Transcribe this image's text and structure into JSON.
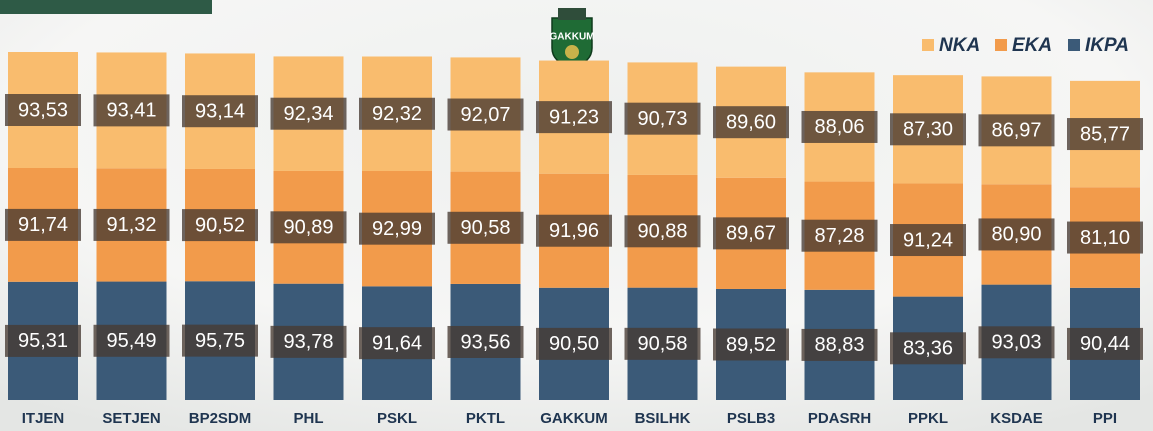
{
  "logo": "GAKKUM",
  "chart_data": {
    "type": "stacked_bar",
    "categories": [
      "ITJEN",
      "SETJEN",
      "BP2SDM",
      "PHL",
      "PSKL",
      "PKTL",
      "GAKKUM",
      "BSILHK",
      "PSLB3",
      "PDASRH",
      "PPKL",
      "KSDAE",
      "PPI"
    ],
    "legend": "top-right",
    "series": [
      {
        "name": "IKPA",
        "color": "#3b5a78",
        "values": [
          95.31,
          95.49,
          95.75,
          93.78,
          91.64,
          93.56,
          90.5,
          90.58,
          89.52,
          88.83,
          83.36,
          93.03,
          90.44
        ],
        "value_labels": [
          "95,31",
          "95,49",
          "95,75",
          "93,78",
          "91,64",
          "93,56",
          "90,50",
          "90,58",
          "89,52",
          "88,83",
          "83,36",
          "93,03",
          "90,44"
        ]
      },
      {
        "name": "EKA",
        "color": "#f29b4b",
        "values": [
          91.74,
          91.32,
          90.52,
          90.89,
          92.99,
          90.58,
          91.96,
          90.88,
          89.67,
          87.28,
          91.24,
          80.9,
          81.1
        ],
        "value_labels": [
          "91,74",
          "91,32",
          "90,52",
          "90,89",
          "92,99",
          "90,58",
          "91,96",
          "90,88",
          "89,67",
          "87,28",
          "91,24",
          "80,90",
          "81,10"
        ]
      },
      {
        "name": "NKA",
        "color": "#f9bc6e",
        "values": [
          93.53,
          93.41,
          93.14,
          92.34,
          92.32,
          92.07,
          91.23,
          90.73,
          89.6,
          88.06,
          87.3,
          86.97,
          85.77
        ],
        "value_labels": [
          "93,53",
          "93,41",
          "93,14",
          "92,34",
          "92,32",
          "92,07",
          "91,23",
          "90,73",
          "89,60",
          "88,06",
          "87,30",
          "86,97",
          "85,77"
        ]
      }
    ]
  }
}
